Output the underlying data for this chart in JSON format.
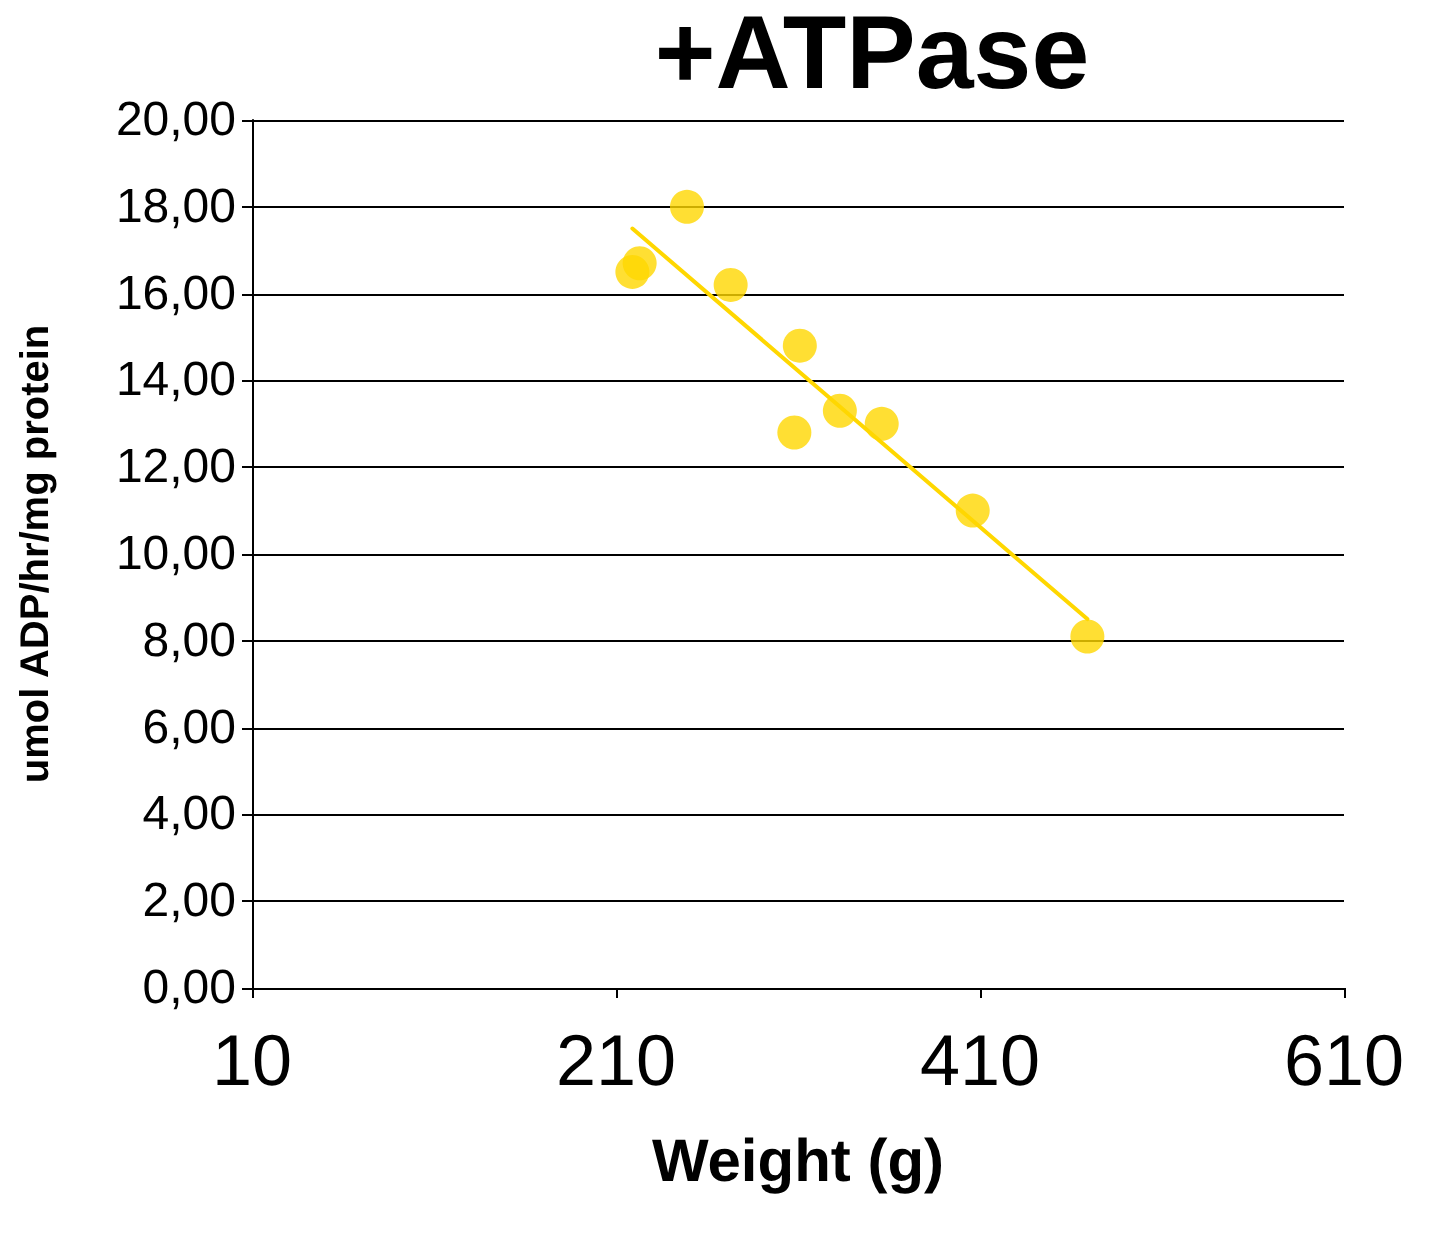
{
  "chart_data": {
    "type": "scatter",
    "title": "+ATPase",
    "xlabel": "Weight (g)",
    "ylabel": "umol ADP/hr/mg protein",
    "series": [
      {
        "color": "#ffd700",
        "marker": "circle",
        "x": [
          219,
          223,
          249,
          273,
          311,
          308,
          333,
          356,
          406,
          469
        ],
        "values": [
          16.5,
          16.7,
          18.0,
          16.2,
          14.8,
          12.8,
          13.3,
          13.0,
          11.0,
          8.1
        ]
      },
      {
        "type": "line",
        "color": "#ffd700",
        "marker": "none",
        "line_style": "solid",
        "x": [
          219,
          469
        ],
        "values": [
          17.5,
          8.5
        ]
      }
    ],
    "xlim": [
      10,
      610
    ],
    "xticks": [
      10,
      210,
      410,
      610
    ],
    "ylim": [
      0,
      20
    ],
    "yticks": [
      {
        "value": 0,
        "label": "0,00"
      },
      {
        "value": 2,
        "label": "2,00"
      },
      {
        "value": 4,
        "label": "4,00"
      },
      {
        "value": 6,
        "label": "6,00"
      },
      {
        "value": 8,
        "label": "8,00"
      },
      {
        "value": 10,
        "label": "10,00"
      },
      {
        "value": 12,
        "label": "12,00"
      },
      {
        "value": 14,
        "label": "14,00"
      },
      {
        "value": 16,
        "label": "16,00"
      },
      {
        "value": 18,
        "label": "18,00"
      },
      {
        "value": 20,
        "label": "20,00"
      }
    ],
    "grid": "y"
  }
}
